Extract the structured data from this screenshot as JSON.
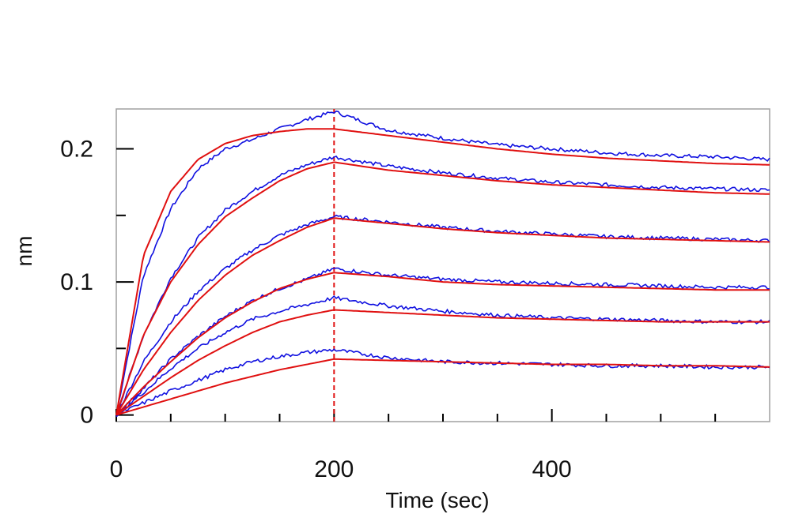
{
  "chart_data": {
    "type": "line",
    "title": "",
    "xlabel": "Time (sec)",
    "ylabel": "nm",
    "xlim": [
      0,
      600
    ],
    "ylim": [
      -0.005,
      0.23
    ],
    "x_ticks": [
      {
        "value": 0,
        "label": "0"
      },
      {
        "value": 200,
        "label": "200"
      },
      {
        "value": 400,
        "label": "400"
      }
    ],
    "x_minor_ticks": [
      50,
      100,
      150,
      250,
      300,
      350,
      450,
      500,
      550
    ],
    "y_ticks": [
      {
        "value": 0,
        "label": "0"
      },
      {
        "value": 0.1,
        "label": "0.1"
      },
      {
        "value": 0.2,
        "label": "0.2"
      }
    ],
    "y_minor_ticks": [
      0.05,
      0.15
    ],
    "grid": false,
    "association_end_sec": 200,
    "colors": {
      "measured": "#1010e0",
      "fitted": "#e01010",
      "marker": "#e01010",
      "frame": "#a0a0a0"
    },
    "measured_series": [
      {
        "x": [
          0,
          25,
          50,
          75,
          100,
          125,
          150,
          175,
          200,
          250,
          300,
          350,
          400,
          450,
          500,
          550,
          600
        ],
        "y": [
          0,
          0.105,
          0.155,
          0.185,
          0.2,
          0.207,
          0.215,
          0.222,
          0.228,
          0.214,
          0.208,
          0.203,
          0.2,
          0.197,
          0.195,
          0.194,
          0.192
        ]
      },
      {
        "x": [
          0,
          25,
          50,
          75,
          100,
          125,
          150,
          175,
          200,
          250,
          300,
          350,
          400,
          450,
          500,
          550,
          600
        ],
        "y": [
          0,
          0.06,
          0.103,
          0.133,
          0.154,
          0.168,
          0.18,
          0.188,
          0.194,
          0.187,
          0.182,
          0.178,
          0.175,
          0.173,
          0.171,
          0.17,
          0.169
        ]
      },
      {
        "x": [
          0,
          25,
          50,
          75,
          100,
          125,
          150,
          175,
          200,
          250,
          300,
          350,
          400,
          450,
          500,
          550,
          600
        ],
        "y": [
          0,
          0.04,
          0.07,
          0.093,
          0.11,
          0.124,
          0.135,
          0.143,
          0.149,
          0.145,
          0.141,
          0.138,
          0.136,
          0.134,
          0.133,
          0.132,
          0.131
        ]
      },
      {
        "x": [
          0,
          25,
          50,
          75,
          100,
          125,
          150,
          175,
          200,
          250,
          300,
          350,
          400,
          450,
          500,
          550,
          600
        ],
        "y": [
          0,
          0.02,
          0.042,
          0.059,
          0.074,
          0.086,
          0.095,
          0.102,
          0.11,
          0.105,
          0.102,
          0.1,
          0.099,
          0.098,
          0.097,
          0.096,
          0.096
        ]
      },
      {
        "x": [
          0,
          25,
          50,
          75,
          100,
          125,
          150,
          175,
          200,
          250,
          300,
          350,
          400,
          450,
          500,
          550,
          600
        ],
        "y": [
          0,
          0.017,
          0.035,
          0.05,
          0.062,
          0.072,
          0.078,
          0.083,
          0.088,
          0.082,
          0.078,
          0.075,
          0.073,
          0.072,
          0.071,
          0.07,
          0.07
        ]
      },
      {
        "x": [
          0,
          25,
          50,
          75,
          100,
          125,
          150,
          175,
          200,
          250,
          300,
          350,
          400,
          450,
          500,
          550,
          600
        ],
        "y": [
          0,
          0.009,
          0.018,
          0.026,
          0.034,
          0.04,
          0.044,
          0.047,
          0.049,
          0.043,
          0.04,
          0.039,
          0.038,
          0.037,
          0.037,
          0.036,
          0.036
        ]
      }
    ],
    "fitted_series": [
      {
        "x": [
          0,
          25,
          50,
          75,
          100,
          125,
          150,
          175,
          200,
          250,
          300,
          350,
          400,
          450,
          500,
          550,
          600
        ],
        "y": [
          0,
          0.12,
          0.168,
          0.192,
          0.204,
          0.21,
          0.213,
          0.215,
          0.215,
          0.21,
          0.205,
          0.2,
          0.196,
          0.193,
          0.191,
          0.189,
          0.188
        ]
      },
      {
        "x": [
          0,
          25,
          50,
          75,
          100,
          125,
          150,
          175,
          200,
          250,
          300,
          350,
          400,
          450,
          500,
          550,
          600
        ],
        "y": [
          0,
          0.06,
          0.1,
          0.128,
          0.149,
          0.163,
          0.176,
          0.185,
          0.19,
          0.184,
          0.18,
          0.176,
          0.173,
          0.171,
          0.169,
          0.167,
          0.166
        ]
      },
      {
        "x": [
          0,
          25,
          50,
          75,
          100,
          125,
          150,
          175,
          200,
          250,
          300,
          350,
          400,
          450,
          500,
          550,
          600
        ],
        "y": [
          0,
          0.034,
          0.062,
          0.086,
          0.105,
          0.12,
          0.131,
          0.141,
          0.148,
          0.144,
          0.14,
          0.137,
          0.135,
          0.133,
          0.132,
          0.131,
          0.13
        ]
      },
      {
        "x": [
          0,
          25,
          50,
          75,
          100,
          125,
          150,
          175,
          200,
          250,
          300,
          350,
          400,
          450,
          500,
          550,
          600
        ],
        "y": [
          0,
          0.021,
          0.04,
          0.058,
          0.073,
          0.085,
          0.095,
          0.102,
          0.107,
          0.104,
          0.1,
          0.098,
          0.097,
          0.096,
          0.095,
          0.094,
          0.094
        ]
      },
      {
        "x": [
          0,
          25,
          50,
          75,
          100,
          125,
          150,
          175,
          200,
          250,
          300,
          350,
          400,
          450,
          500,
          550,
          600
        ],
        "y": [
          0,
          0.014,
          0.028,
          0.041,
          0.052,
          0.062,
          0.07,
          0.075,
          0.079,
          0.077,
          0.075,
          0.073,
          0.072,
          0.071,
          0.07,
          0.07,
          0.07
        ]
      },
      {
        "x": [
          0,
          25,
          50,
          75,
          100,
          125,
          150,
          175,
          200,
          250,
          300,
          350,
          400,
          450,
          500,
          550,
          600
        ],
        "y": [
          0,
          0.006,
          0.012,
          0.018,
          0.024,
          0.029,
          0.034,
          0.038,
          0.042,
          0.041,
          0.04,
          0.039,
          0.038,
          0.038,
          0.037,
          0.037,
          0.036
        ]
      }
    ]
  }
}
